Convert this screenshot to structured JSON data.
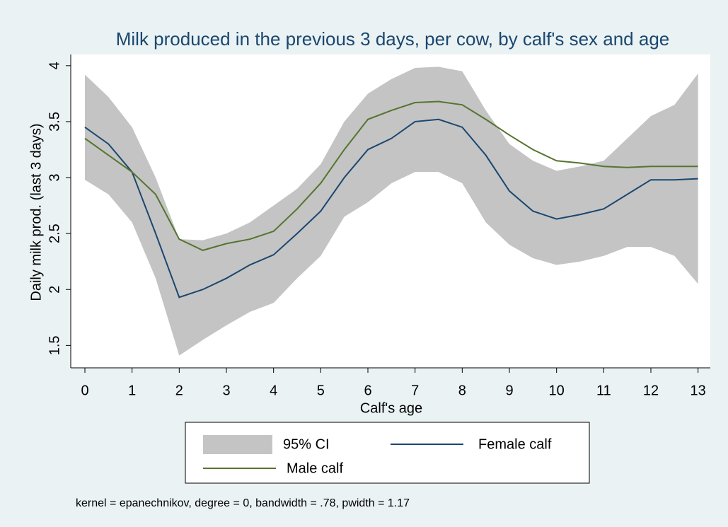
{
  "chart_data": {
    "type": "line",
    "title": "Milk produced in the previous 3 days, per cow, by calf's sex and age",
    "x_label": "Calf's age",
    "y_label": "Daily milk prod. (last 3 days)",
    "note": "kernel = epanechnikov, degree = 0, bandwidth = .78, pwidth = 1.17",
    "x": [
      0,
      0.5,
      1,
      1.5,
      2,
      2.5,
      3,
      3.5,
      4,
      4.5,
      5,
      5.5,
      6,
      6.5,
      7,
      7.5,
      8,
      8.5,
      9,
      9.5,
      10,
      10.5,
      11,
      11.5,
      12,
      12.5,
      13
    ],
    "ci": {
      "name": "95% CI",
      "color": "#c4c4c4",
      "upper": [
        3.92,
        3.72,
        3.45,
        3.0,
        2.45,
        2.44,
        2.5,
        2.6,
        2.75,
        2.9,
        3.12,
        3.5,
        3.75,
        3.88,
        3.98,
        3.99,
        3.95,
        3.6,
        3.3,
        3.15,
        3.06,
        3.1,
        3.15,
        3.35,
        3.55,
        3.65,
        3.93
      ],
      "lower": [
        2.98,
        2.85,
        2.6,
        2.1,
        1.41,
        1.55,
        1.68,
        1.8,
        1.88,
        2.1,
        2.3,
        2.65,
        2.78,
        2.95,
        3.05,
        3.05,
        2.95,
        2.6,
        2.4,
        2.28,
        2.22,
        2.25,
        2.3,
        2.38,
        2.38,
        2.3,
        2.05
      ]
    },
    "series": [
      {
        "name": "Female calf",
        "color": "#1a476f",
        "values": [
          3.45,
          3.3,
          3.05,
          2.5,
          1.93,
          2.0,
          2.1,
          2.22,
          2.31,
          2.5,
          2.7,
          3.0,
          3.25,
          3.35,
          3.5,
          3.52,
          3.45,
          3.2,
          2.88,
          2.7,
          2.63,
          2.67,
          2.72,
          2.85,
          2.98,
          2.98,
          2.99
        ]
      },
      {
        "name": "Male calf",
        "color": "#55752f",
        "values": [
          3.35,
          3.2,
          3.05,
          2.85,
          2.45,
          2.35,
          2.41,
          2.45,
          2.52,
          2.72,
          2.95,
          3.25,
          3.52,
          3.6,
          3.67,
          3.68,
          3.65,
          3.52,
          3.38,
          3.25,
          3.15,
          3.13,
          3.1,
          3.09,
          3.1,
          3.1,
          3.1
        ]
      }
    ],
    "xlim": [
      -0.3,
      13.26
    ],
    "ylim": [
      1.3,
      4.1
    ],
    "xticks": [
      0,
      1,
      2,
      3,
      4,
      5,
      6,
      7,
      8,
      9,
      10,
      11,
      12,
      13
    ],
    "yticks": [
      1.5,
      2,
      2.5,
      3,
      3.5,
      4
    ],
    "grid": false,
    "legend": "bottom"
  }
}
